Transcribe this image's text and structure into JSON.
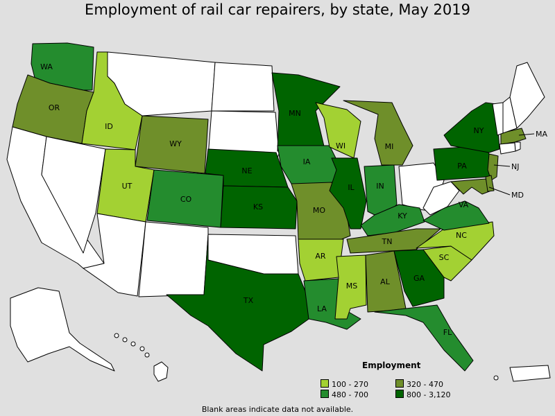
{
  "title": "Employment of rail car repairers, by state, May 2019",
  "legend": {
    "title": "Employment",
    "classes": [
      {
        "range": "100 - 270",
        "color": "#a3d133"
      },
      {
        "range": "480 - 700",
        "color": "#248c2e"
      },
      {
        "range": "320 - 470",
        "color": "#6f8f2a"
      },
      {
        "range": "800 - 3,120",
        "color": "#006400"
      }
    ]
  },
  "note": "Blank areas indicate data not available.",
  "colors": {
    "no_data": "#ffffff",
    "background": "#e0e0e0",
    "border": "#000000"
  },
  "states": [
    {
      "abbr": "WA",
      "class": 1,
      "label": "WA"
    },
    {
      "abbr": "OR",
      "class": 2,
      "label": "OR"
    },
    {
      "abbr": "CA",
      "class": -1,
      "label": ""
    },
    {
      "abbr": "NV",
      "class": -1,
      "label": ""
    },
    {
      "abbr": "ID",
      "class": 0,
      "label": "ID"
    },
    {
      "abbr": "MT",
      "class": -1,
      "label": ""
    },
    {
      "abbr": "WY",
      "class": 2,
      "label": "WY"
    },
    {
      "abbr": "UT",
      "class": 0,
      "label": "UT"
    },
    {
      "abbr": "AZ",
      "class": -1,
      "label": ""
    },
    {
      "abbr": "CO",
      "class": 1,
      "label": "CO"
    },
    {
      "abbr": "NM",
      "class": -1,
      "label": ""
    },
    {
      "abbr": "ND",
      "class": -1,
      "label": ""
    },
    {
      "abbr": "SD",
      "class": -1,
      "label": ""
    },
    {
      "abbr": "NE",
      "class": 3,
      "label": "NE"
    },
    {
      "abbr": "KS",
      "class": 3,
      "label": "KS"
    },
    {
      "abbr": "OK",
      "class": -1,
      "label": ""
    },
    {
      "abbr": "TX",
      "class": 3,
      "label": "TX"
    },
    {
      "abbr": "MN",
      "class": 3,
      "label": "MN"
    },
    {
      "abbr": "IA",
      "class": 1,
      "label": "IA"
    },
    {
      "abbr": "MO",
      "class": 2,
      "label": "MO"
    },
    {
      "abbr": "AR",
      "class": 0,
      "label": "AR"
    },
    {
      "abbr": "LA",
      "class": 1,
      "label": "LA"
    },
    {
      "abbr": "WI",
      "class": 0,
      "label": "WI"
    },
    {
      "abbr": "IL",
      "class": 3,
      "label": "IL"
    },
    {
      "abbr": "MI",
      "class": 2,
      "label": "MI"
    },
    {
      "abbr": "IN",
      "class": 1,
      "label": "IN"
    },
    {
      "abbr": "OH",
      "class": -1,
      "label": ""
    },
    {
      "abbr": "KY",
      "class": 1,
      "label": "KY"
    },
    {
      "abbr": "TN",
      "class": 2,
      "label": "TN"
    },
    {
      "abbr": "MS",
      "class": 0,
      "label": "MS"
    },
    {
      "abbr": "AL",
      "class": 2,
      "label": "AL"
    },
    {
      "abbr": "GA",
      "class": 3,
      "label": "GA"
    },
    {
      "abbr": "FL",
      "class": 1,
      "label": "FL"
    },
    {
      "abbr": "SC",
      "class": 0,
      "label": "SC"
    },
    {
      "abbr": "NC",
      "class": 0,
      "label": "NC"
    },
    {
      "abbr": "VA",
      "class": 1,
      "label": "VA"
    },
    {
      "abbr": "WV",
      "class": -1,
      "label": ""
    },
    {
      "abbr": "PA",
      "class": 3,
      "label": "PA"
    },
    {
      "abbr": "NY",
      "class": 3,
      "label": "NY"
    },
    {
      "abbr": "MD",
      "class": 2,
      "label": "MD"
    },
    {
      "abbr": "NJ",
      "class": 2,
      "label": "NJ"
    },
    {
      "abbr": "DE",
      "class": 2,
      "label": ""
    },
    {
      "abbr": "MA",
      "class": 2,
      "label": "MA"
    },
    {
      "abbr": "CT",
      "class": -1,
      "label": ""
    },
    {
      "abbr": "RI",
      "class": -1,
      "label": ""
    },
    {
      "abbr": "VT",
      "class": -1,
      "label": ""
    },
    {
      "abbr": "NH",
      "class": -1,
      "label": ""
    },
    {
      "abbr": "ME",
      "class": -1,
      "label": ""
    },
    {
      "abbr": "AK",
      "class": -1,
      "label": ""
    },
    {
      "abbr": "HI",
      "class": -1,
      "label": ""
    },
    {
      "abbr": "PR",
      "class": -1,
      "label": ""
    }
  ]
}
